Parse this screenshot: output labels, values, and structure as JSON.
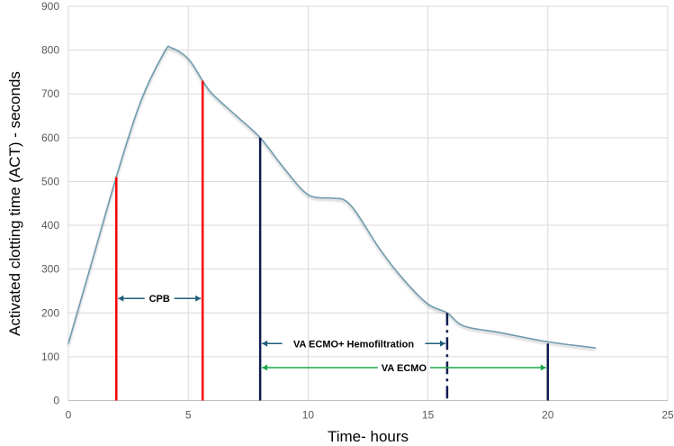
{
  "chart_data": {
    "type": "line",
    "title": "",
    "xlabel": "Time- hours",
    "ylabel": "Activated clotting time (ACT) - seconds",
    "xlim": [
      0,
      25
    ],
    "ylim": [
      0,
      900
    ],
    "xticks": [
      0,
      5,
      10,
      15,
      20,
      25
    ],
    "yticks": [
      0,
      100,
      200,
      300,
      400,
      500,
      600,
      700,
      800,
      900
    ],
    "grid": true,
    "series": [
      {
        "name": "ACT",
        "color": "#6f9cae",
        "x": [
          0,
          1,
          2,
          3,
          4,
          4.3,
          5,
          5.6,
          6,
          7,
          8,
          9,
          10,
          11,
          11.5,
          12,
          13,
          14,
          15,
          15.8,
          16.5,
          18,
          20,
          22
        ],
        "y": [
          130,
          320,
          510,
          680,
          795,
          805,
          780,
          730,
          700,
          650,
          600,
          530,
          470,
          462,
          458,
          430,
          345,
          275,
          220,
          200,
          170,
          155,
          134,
          120
        ]
      }
    ],
    "markers": [
      {
        "x": 2,
        "top": 510,
        "color": "#ff0000",
        "style": "solid"
      },
      {
        "x": 5.6,
        "top": 730,
        "color": "#ff0000",
        "style": "solid"
      },
      {
        "x": 8,
        "top": 600,
        "color": "#0d1b4f",
        "style": "solid"
      },
      {
        "x": 15.8,
        "top": 200,
        "color": "#0d1b4f",
        "style": "dashdot"
      },
      {
        "x": 20,
        "top": 130,
        "color": "#0d1b4f",
        "style": "solid"
      }
    ],
    "annotations": [
      {
        "label": "CPB",
        "x_from": 2,
        "x_to": 5.6,
        "y": 233,
        "color": "#1f5f7a"
      },
      {
        "label": "VA ECMO+ Hemofiltration",
        "x_from": 8,
        "x_to": 15.8,
        "y": 130,
        "color": "#1f5f7a"
      },
      {
        "label": "VA ECMO",
        "x_from": 8,
        "x_to": 20,
        "y": 75,
        "color": "#1aa84a"
      }
    ]
  }
}
